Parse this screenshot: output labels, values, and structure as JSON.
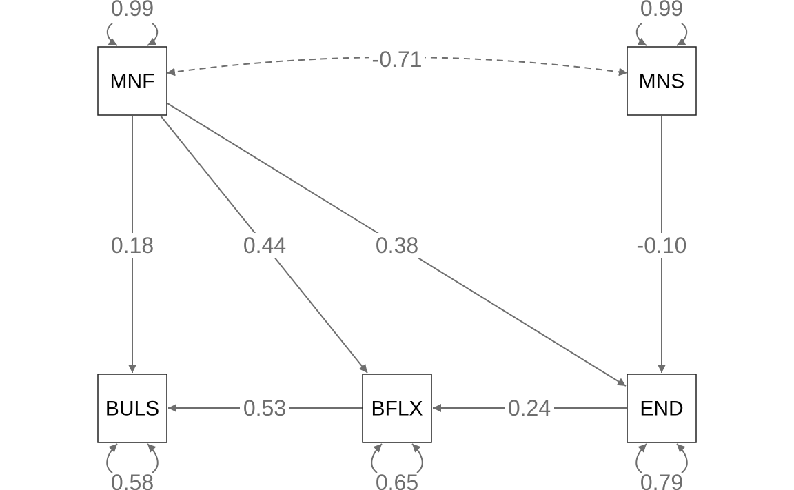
{
  "nodes": {
    "MNF": "MNF",
    "MNS": "MNS",
    "BULS": "BULS",
    "BFLX": "BFLX",
    "END": "END"
  },
  "paths": {
    "MNF_BULS": "0.18",
    "MNF_BFLX": "0.44",
    "MNF_END": "0.38",
    "MNS_END": "-0.10",
    "BFLX_BULS": "0.53",
    "END_BFLX": "0.24"
  },
  "covariance": {
    "MNF_MNS": "-0.71"
  },
  "residuals": {
    "MNF": "0.99",
    "MNS": "0.99",
    "BULS": "0.58",
    "BFLX": "0.65",
    "END": "0.79"
  },
  "colors": {
    "edge": "#6e6e6e",
    "box": "#222222"
  }
}
